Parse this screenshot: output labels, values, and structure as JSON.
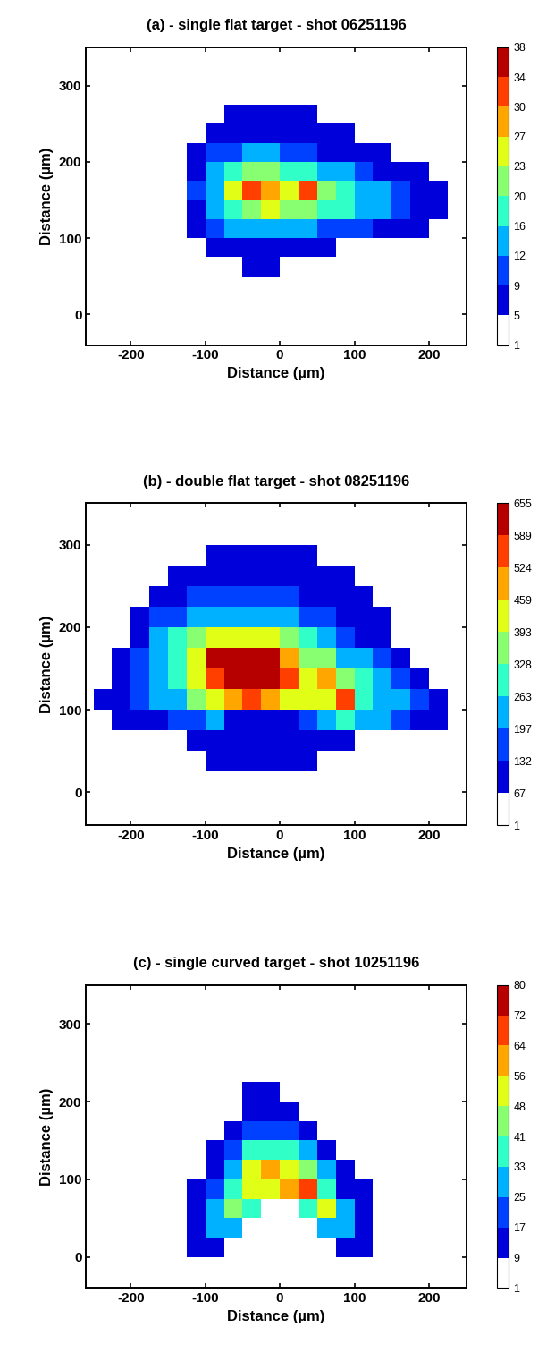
{
  "chart_data": [
    {
      "type": "heatmap",
      "title": "(a) - single flat target - shot 06251196",
      "x_label": "Distance (µm)",
      "y_label": "Distance (µm)",
      "xlim": [
        -260,
        250
      ],
      "ylim": [
        -40,
        350
      ],
      "xticks": [
        -200,
        -100,
        0,
        100,
        200
      ],
      "yticks": [
        0,
        100,
        200,
        300
      ],
      "x_edges": [
        -250,
        -225,
        -200,
        -175,
        -150,
        -125,
        -100,
        -75,
        -50,
        -25,
        0,
        25,
        50,
        75,
        100,
        125,
        150,
        175,
        200,
        225,
        250
      ],
      "y_edges": [
        -50,
        -25,
        0,
        25,
        50,
        75,
        100,
        125,
        150,
        175,
        200,
        225,
        250,
        275,
        300,
        325,
        350
      ],
      "cells": [
        [
          null,
          null,
          null,
          null,
          null,
          null,
          null,
          null,
          null,
          null,
          null,
          null,
          null,
          null,
          null,
          null,
          null,
          null,
          null,
          null
        ],
        [
          null,
          null,
          null,
          null,
          null,
          null,
          null,
          null,
          null,
          null,
          null,
          null,
          null,
          null,
          null,
          null,
          null,
          null,
          null,
          null
        ],
        [
          null,
          null,
          null,
          null,
          null,
          null,
          null,
          null,
          null,
          null,
          null,
          null,
          null,
          null,
          null,
          null,
          null,
          null,
          null,
          null
        ],
        [
          null,
          null,
          null,
          null,
          null,
          null,
          null,
          null,
          null,
          null,
          null,
          null,
          null,
          null,
          null,
          null,
          null,
          null,
          null,
          null
        ],
        [
          null,
          null,
          null,
          null,
          null,
          null,
          null,
          null,
          5,
          5,
          null,
          null,
          null,
          null,
          null,
          null,
          null,
          null,
          null,
          null
        ],
        [
          null,
          null,
          null,
          null,
          null,
          null,
          6,
          7,
          8,
          8,
          7,
          6,
          5,
          null,
          null,
          null,
          null,
          null,
          null,
          null
        ],
        [
          null,
          null,
          null,
          null,
          null,
          6,
          9,
          12,
          14,
          14,
          13,
          12,
          11,
          10,
          9,
          8,
          6,
          5,
          null,
          null
        ],
        [
          null,
          null,
          null,
          null,
          null,
          8,
          12,
          18,
          22,
          24,
          22,
          20,
          18,
          16,
          14,
          12,
          9,
          7,
          5,
          null
        ],
        [
          null,
          null,
          null,
          null,
          null,
          9,
          14,
          24,
          30,
          28,
          26,
          30,
          22,
          18,
          15,
          12,
          10,
          8,
          6,
          null
        ],
        [
          null,
          null,
          null,
          null,
          null,
          8,
          12,
          18,
          20,
          20,
          19,
          17,
          15,
          12,
          10,
          8,
          6,
          5,
          null,
          null
        ],
        [
          null,
          null,
          null,
          null,
          null,
          7,
          9,
          11,
          12,
          12,
          11,
          9,
          8,
          7,
          6,
          5,
          null,
          null,
          null,
          null
        ],
        [
          null,
          null,
          null,
          null,
          null,
          null,
          6,
          7,
          7,
          7,
          6,
          5,
          5,
          5,
          null,
          null,
          null,
          null,
          null,
          null
        ],
        [
          null,
          null,
          null,
          null,
          null,
          null,
          null,
          5,
          5,
          5,
          5,
          5,
          null,
          null,
          null,
          null,
          null,
          null,
          null,
          null
        ],
        [
          null,
          null,
          null,
          null,
          null,
          null,
          null,
          null,
          null,
          null,
          null,
          null,
          null,
          null,
          null,
          null,
          null,
          null,
          null,
          null
        ],
        [
          null,
          null,
          null,
          null,
          null,
          null,
          null,
          null,
          null,
          null,
          null,
          null,
          null,
          null,
          null,
          null,
          null,
          null,
          null,
          null
        ],
        [
          null,
          null,
          null,
          null,
          null,
          null,
          null,
          null,
          null,
          null,
          null,
          null,
          null,
          null,
          null,
          null,
          null,
          null,
          null,
          null
        ]
      ],
      "colorbar_range": [
        1,
        38
      ],
      "colorbar_ticks": [
        1,
        5,
        9,
        12,
        16,
        20,
        23,
        27,
        30,
        34,
        38
      ]
    },
    {
      "type": "heatmap",
      "title": "(b) - double flat target - shot 08251196",
      "x_label": "Distance (µm)",
      "y_label": "Distance (µm)",
      "xlim": [
        -260,
        250
      ],
      "ylim": [
        -40,
        350
      ],
      "xticks": [
        -200,
        -100,
        0,
        100,
        200
      ],
      "yticks": [
        0,
        100,
        200,
        300
      ],
      "x_edges": [
        -250,
        -225,
        -200,
        -175,
        -150,
        -125,
        -100,
        -75,
        -50,
        -25,
        0,
        25,
        50,
        75,
        100,
        125,
        150,
        175,
        200,
        225,
        250
      ],
      "y_edges": [
        -50,
        -25,
        0,
        25,
        50,
        75,
        100,
        125,
        150,
        175,
        200,
        225,
        250,
        275,
        300,
        325,
        350
      ],
      "cells": [
        [
          null,
          null,
          null,
          null,
          null,
          null,
          null,
          null,
          null,
          null,
          null,
          null,
          null,
          null,
          null,
          null,
          null,
          null,
          null,
          null
        ],
        [
          null,
          null,
          null,
          null,
          null,
          null,
          null,
          null,
          null,
          null,
          null,
          null,
          null,
          null,
          null,
          null,
          null,
          null,
          null,
          null
        ],
        [
          null,
          null,
          null,
          null,
          null,
          null,
          null,
          null,
          null,
          null,
          null,
          null,
          null,
          null,
          null,
          null,
          null,
          null,
          null,
          null
        ],
        [
          null,
          null,
          null,
          null,
          null,
          null,
          80,
          90,
          90,
          90,
          90,
          80,
          null,
          null,
          null,
          null,
          null,
          null,
          null,
          null
        ],
        [
          null,
          null,
          null,
          null,
          null,
          80,
          100,
          100,
          100,
          100,
          100,
          90,
          90,
          80,
          null,
          null,
          null,
          null,
          null,
          null
        ],
        [
          null,
          80,
          100,
          120,
          150,
          180,
          200,
          120,
          110,
          110,
          120,
          150,
          200,
          300,
          250,
          200,
          150,
          100,
          80,
          null
        ],
        [
          80,
          120,
          160,
          200,
          250,
          330,
          400,
          500,
          550,
          500,
          450,
          400,
          420,
          550,
          300,
          250,
          200,
          150,
          100,
          null
        ],
        [
          null,
          130,
          180,
          250,
          320,
          400,
          550,
          650,
          620,
          600,
          550,
          450,
          500,
          330,
          280,
          220,
          160,
          110,
          null,
          null
        ],
        [
          null,
          120,
          170,
          240,
          320,
          420,
          600,
          650,
          640,
          600,
          500,
          380,
          330,
          260,
          200,
          150,
          100,
          null,
          null,
          null
        ],
        [
          null,
          null,
          130,
          200,
          270,
          330,
          420,
          450,
          440,
          400,
          340,
          280,
          220,
          170,
          130,
          90,
          null,
          null,
          null,
          null
        ],
        [
          null,
          null,
          90,
          140,
          190,
          230,
          250,
          260,
          250,
          230,
          200,
          170,
          140,
          110,
          90,
          80,
          null,
          null,
          null,
          null
        ],
        [
          null,
          null,
          null,
          80,
          110,
          140,
          160,
          170,
          170,
          160,
          140,
          120,
          100,
          90,
          80,
          null,
          null,
          null,
          null,
          null
        ],
        [
          null,
          null,
          null,
          null,
          80,
          90,
          110,
          120,
          120,
          120,
          110,
          100,
          90,
          80,
          null,
          null,
          null,
          null,
          null,
          null
        ],
        [
          null,
          null,
          null,
          null,
          null,
          null,
          80,
          90,
          90,
          90,
          85,
          80,
          null,
          null,
          null,
          null,
          null,
          null,
          null,
          null
        ],
        [
          null,
          null,
          null,
          null,
          null,
          null,
          null,
          null,
          null,
          null,
          null,
          null,
          null,
          null,
          null,
          null,
          null,
          null,
          null,
          null
        ],
        [
          null,
          null,
          null,
          null,
          null,
          null,
          null,
          null,
          null,
          null,
          null,
          null,
          null,
          null,
          null,
          null,
          null,
          null,
          null,
          null
        ]
      ],
      "colorbar_range": [
        1,
        655
      ],
      "colorbar_ticks": [
        1,
        67,
        132,
        197,
        263,
        328,
        393,
        459,
        524,
        589,
        655
      ]
    },
    {
      "type": "heatmap",
      "title": "(c) - single curved target - shot 10251196",
      "x_label": "Distance (µm)",
      "y_label": "Distance (µm)",
      "xlim": [
        -260,
        250
      ],
      "ylim": [
        -40,
        350
      ],
      "xticks": [
        -200,
        -100,
        0,
        100,
        200
      ],
      "yticks": [
        0,
        100,
        200,
        300
      ],
      "x_edges": [
        -250,
        -225,
        -200,
        -175,
        -150,
        -125,
        -100,
        -75,
        -50,
        -25,
        0,
        25,
        50,
        75,
        100,
        125,
        150,
        175,
        200,
        225,
        250
      ],
      "y_edges": [
        -50,
        -25,
        0,
        25,
        50,
        75,
        100,
        125,
        150,
        175,
        200,
        225,
        250,
        275,
        300,
        325,
        350
      ],
      "cells": [
        [
          null,
          null,
          null,
          null,
          null,
          null,
          null,
          null,
          null,
          null,
          null,
          null,
          null,
          null,
          null,
          null,
          null,
          null,
          null,
          null
        ],
        [
          null,
          null,
          null,
          null,
          null,
          null,
          null,
          null,
          null,
          null,
          null,
          null,
          null,
          null,
          null,
          null,
          null,
          null,
          null,
          null
        ],
        [
          null,
          null,
          null,
          null,
          null,
          12,
          15,
          null,
          null,
          null,
          null,
          null,
          null,
          15,
          10,
          null,
          null,
          null,
          null,
          null
        ],
        [
          null,
          null,
          null,
          null,
          null,
          15,
          30,
          25,
          null,
          null,
          null,
          null,
          25,
          30,
          15,
          null,
          null,
          null,
          null,
          null
        ],
        [
          null,
          null,
          null,
          null,
          null,
          12,
          25,
          45,
          35,
          null,
          null,
          35,
          50,
          30,
          12,
          null,
          null,
          null,
          null,
          null
        ],
        [
          null,
          null,
          null,
          null,
          null,
          10,
          20,
          40,
          55,
          50,
          60,
          65,
          40,
          15,
          9,
          null,
          null,
          null,
          null,
          null
        ],
        [
          null,
          null,
          null,
          null,
          null,
          null,
          15,
          30,
          50,
          60,
          55,
          45,
          25,
          10,
          null,
          null,
          null,
          null,
          null,
          null
        ],
        [
          null,
          null,
          null,
          null,
          null,
          null,
          10,
          20,
          35,
          40,
          35,
          25,
          12,
          null,
          null,
          null,
          null,
          null,
          null,
          null
        ],
        [
          null,
          null,
          null,
          null,
          null,
          null,
          null,
          12,
          20,
          22,
          18,
          10,
          null,
          null,
          null,
          null,
          null,
          null,
          null,
          null
        ],
        [
          null,
          null,
          null,
          null,
          null,
          null,
          null,
          null,
          10,
          12,
          10,
          null,
          null,
          null,
          null,
          null,
          null,
          null,
          null,
          null
        ],
        [
          null,
          null,
          null,
          null,
          null,
          null,
          null,
          null,
          9,
          9,
          null,
          null,
          null,
          null,
          null,
          null,
          null,
          null,
          null,
          null
        ],
        [
          null,
          null,
          null,
          null,
          null,
          null,
          null,
          null,
          null,
          null,
          null,
          null,
          null,
          null,
          null,
          null,
          null,
          null,
          null,
          null
        ],
        [
          null,
          null,
          null,
          null,
          null,
          null,
          null,
          null,
          null,
          null,
          null,
          null,
          null,
          null,
          null,
          null,
          null,
          null,
          null,
          null
        ],
        [
          null,
          null,
          null,
          null,
          null,
          null,
          null,
          null,
          null,
          null,
          null,
          null,
          null,
          null,
          null,
          null,
          null,
          null,
          null,
          null
        ],
        [
          null,
          null,
          null,
          null,
          null,
          null,
          null,
          null,
          null,
          null,
          null,
          null,
          null,
          null,
          null,
          null,
          null,
          null,
          null,
          null
        ],
        [
          null,
          null,
          null,
          null,
          null,
          null,
          null,
          null,
          null,
          null,
          null,
          null,
          null,
          null,
          null,
          null,
          null,
          null,
          null,
          null
        ]
      ],
      "colorbar_range": [
        1,
        80
      ],
      "colorbar_ticks": [
        1,
        9,
        17,
        25,
        33,
        41,
        48,
        56,
        64,
        72,
        80
      ]
    }
  ]
}
